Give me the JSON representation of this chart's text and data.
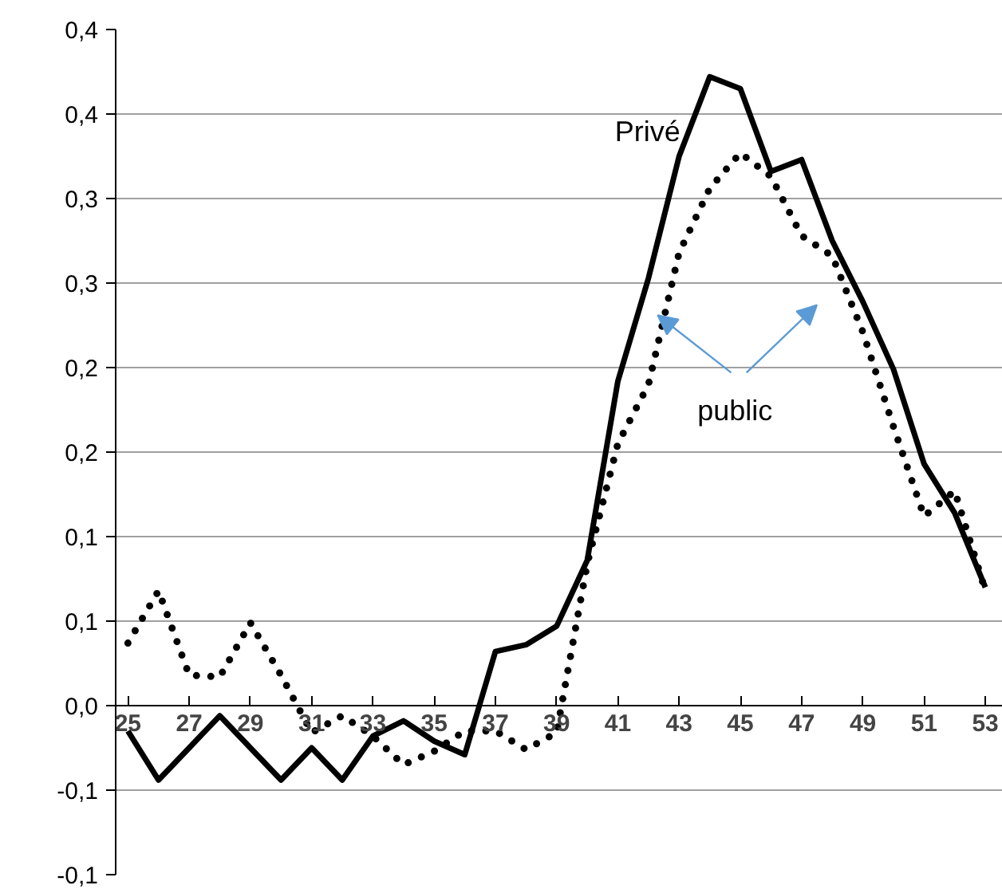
{
  "chart_data": {
    "type": "line",
    "x": [
      25,
      26,
      27,
      28,
      29,
      30,
      31,
      32,
      33,
      34,
      35,
      36,
      37,
      38,
      39,
      40,
      41,
      42,
      43,
      44,
      45,
      46,
      47,
      48,
      49,
      50,
      51,
      52,
      53
    ],
    "series": [
      {
        "name": "Privé",
        "color": "#000000",
        "line_style": "solid",
        "values": [
          -0.015,
          -0.044,
          -0.025,
          -0.006,
          -0.025,
          -0.044,
          -0.025,
          -0.044,
          -0.018,
          -0.009,
          -0.021,
          -0.029,
          0.032,
          0.036,
          0.047,
          0.086,
          0.192,
          0.253,
          0.325,
          0.372,
          0.365,
          0.316,
          0.323,
          0.275,
          0.239,
          0.199,
          0.143,
          0.114,
          0.07
        ]
      },
      {
        "name": "public",
        "color": "#000000",
        "line_style": "dotted",
        "values": [
          0.037,
          0.068,
          0.018,
          0.017,
          0.049,
          0.018,
          -0.016,
          -0.006,
          -0.018,
          -0.035,
          -0.027,
          -0.015,
          -0.015,
          -0.026,
          -0.016,
          0.084,
          0.155,
          0.19,
          0.268,
          0.306,
          0.327,
          0.313,
          0.278,
          0.266,
          0.221,
          0.165,
          0.112,
          0.127,
          0.068
        ]
      }
    ],
    "xlim": [
      24.6,
      53.57
    ],
    "xticks": [
      25,
      27,
      29,
      31,
      33,
      35,
      37,
      39,
      41,
      43,
      45,
      47,
      49,
      51,
      53
    ],
    "ylim": [
      -0.1,
      0.4
    ],
    "yticks": [
      {
        "value": -0.1,
        "label": "-0,1"
      },
      {
        "value": -0.05,
        "label": "-0,1"
      },
      {
        "value": 0,
        "label": "0,0"
      },
      {
        "value": 0.05,
        "label": "0,1"
      },
      {
        "value": 0.1,
        "label": "0,1"
      },
      {
        "value": 0.15,
        "label": "0,2"
      },
      {
        "value": 0.2,
        "label": "0,2"
      },
      {
        "value": 0.25,
        "label": "0,3"
      },
      {
        "value": 0.3,
        "label": "0,3"
      },
      {
        "value": 0.35,
        "label": "0,4"
      },
      {
        "value": 0.4,
        "label": "0,4"
      }
    ],
    "grid": "y",
    "marker": "none"
  }
}
